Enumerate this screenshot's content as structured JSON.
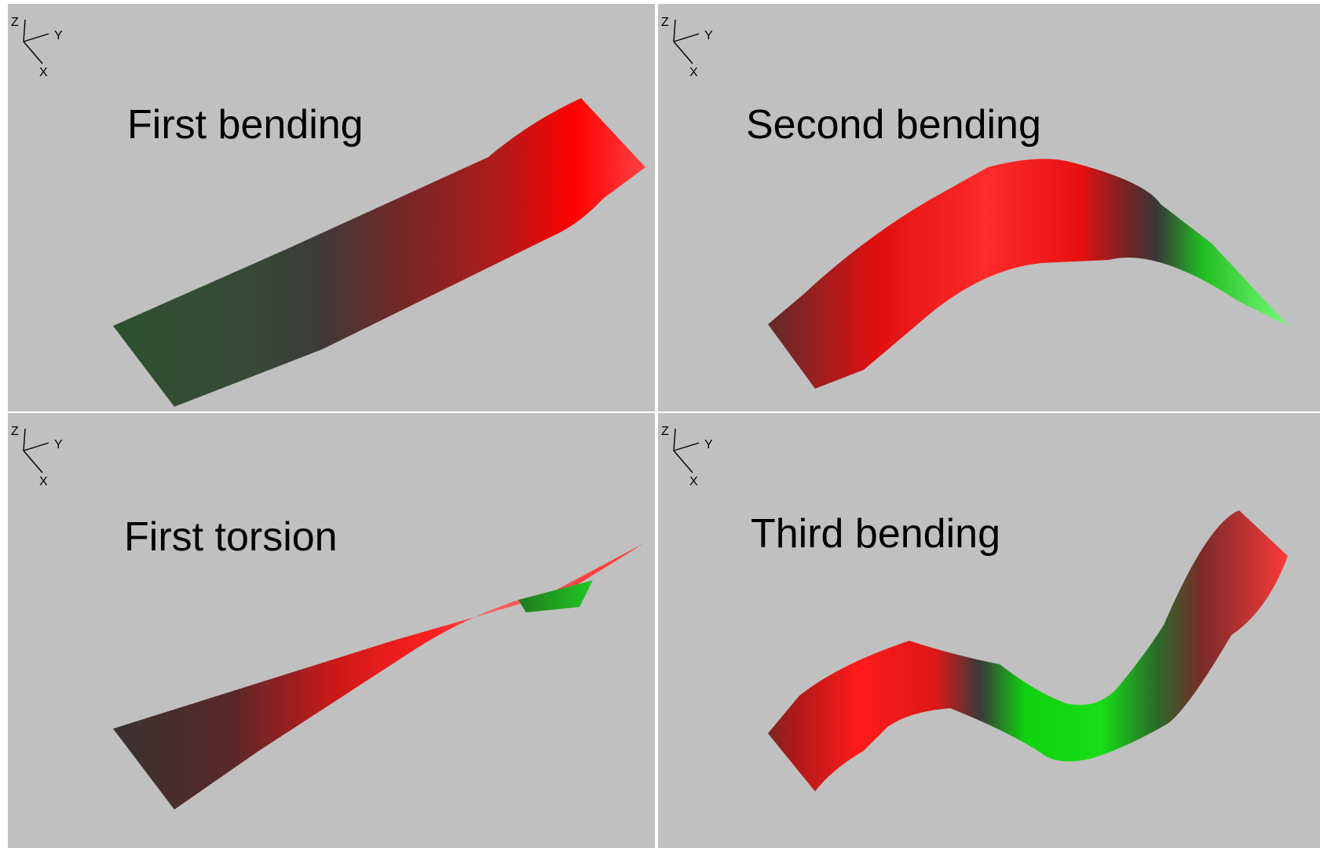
{
  "panels": [
    {
      "title": "First bending",
      "axes": {
        "z": "Z",
        "y": "Y",
        "x": "X"
      }
    },
    {
      "title": "Second bending",
      "axes": {
        "z": "Z",
        "y": "Y",
        "x": "X"
      }
    },
    {
      "title": "First torsion",
      "axes": {
        "z": "Z",
        "y": "Y",
        "x": "X"
      }
    },
    {
      "title": "Third bending",
      "axes": {
        "z": "Z",
        "y": "Y",
        "x": "X"
      }
    }
  ],
  "colors": {
    "background": "#c0c0c0",
    "max_displacement": "#ff0000",
    "min_displacement": "#00ff00",
    "mid_displacement": "#3a3a3a"
  }
}
